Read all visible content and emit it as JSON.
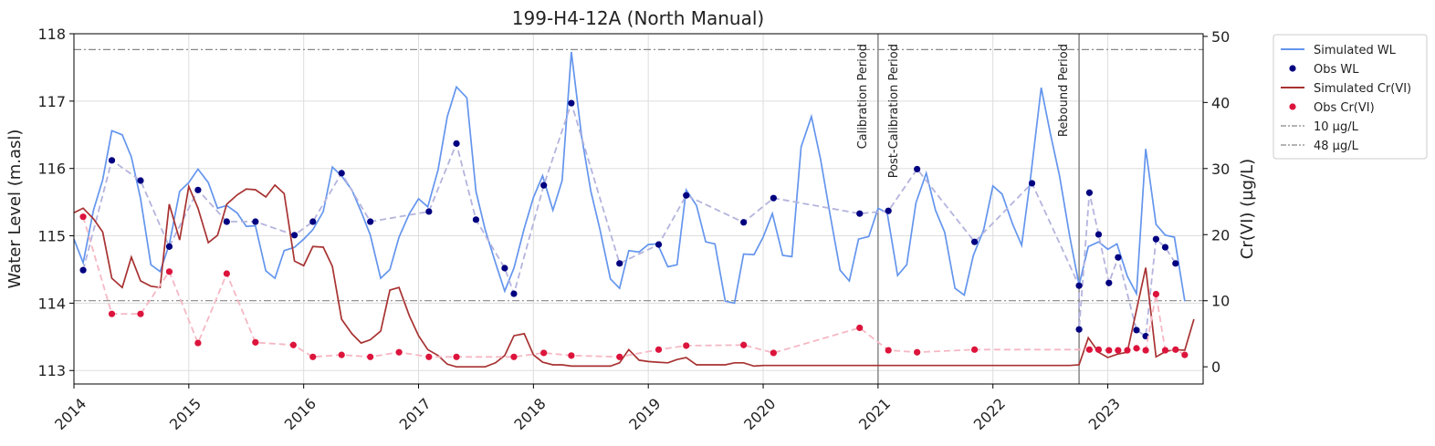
{
  "chart_data": {
    "type": "line",
    "title": "199-H4-12A (North Manual)",
    "ylabel": "Water Level (m.asl)",
    "y2label": "Cr(VI) (µg/L)",
    "xlim": [
      2014,
      2023.83
    ],
    "xticks": [
      2014,
      2015,
      2016,
      2017,
      2018,
      2019,
      2020,
      2021,
      2022,
      2023
    ],
    "ylim": [
      112.8,
      118
    ],
    "yticks": [
      113,
      114,
      115,
      116,
      117,
      118
    ],
    "y2lim": [
      -2.6,
      50.4
    ],
    "y2ticks": [
      0,
      10,
      20,
      30,
      40,
      50
    ],
    "grid": true,
    "legend": "outside-right",
    "x": [
      2014,
      2014.08,
      2014.17,
      2014.25,
      2014.33,
      2014.42,
      2014.5,
      2014.58,
      2014.67,
      2014.75,
      2014.83,
      2014.92,
      2015,
      2015.08,
      2015.17,
      2015.25,
      2015.33,
      2015.42,
      2015.5,
      2015.58,
      2015.67,
      2015.75,
      2015.83,
      2015.92,
      2016,
      2016.08,
      2016.17,
      2016.25,
      2016.33,
      2016.42,
      2016.5,
      2016.58,
      2016.67,
      2016.75,
      2016.83,
      2016.92,
      2017,
      2017.08,
      2017.17,
      2017.25,
      2017.33,
      2017.42,
      2017.5,
      2017.58,
      2017.67,
      2017.75,
      2017.83,
      2017.92,
      2018,
      2018.08,
      2018.17,
      2018.25,
      2018.33,
      2018.42,
      2018.5,
      2018.58,
      2018.67,
      2018.75,
      2018.83,
      2018.92,
      2019,
      2019.08,
      2019.17,
      2019.25,
      2019.33,
      2019.42,
      2019.5,
      2019.58,
      2019.67,
      2019.75,
      2019.83,
      2019.92,
      2020,
      2020.08,
      2020.17,
      2020.25,
      2020.33,
      2020.42,
      2020.5,
      2020.58,
      2020.67,
      2020.75,
      2020.83,
      2020.92,
      2021,
      2021.08,
      2021.17,
      2021.25,
      2021.33,
      2021.42,
      2021.5,
      2021.58,
      2021.67,
      2021.75,
      2021.83,
      2021.92,
      2022,
      2022.08,
      2022.17,
      2022.25,
      2022.33,
      2022.42,
      2022.5,
      2022.58,
      2022.67,
      2022.75,
      2022.83,
      2022.92,
      2023,
      2023.08,
      2023.17,
      2023.25,
      2023.33,
      2023.42,
      2023.5,
      2023.58,
      2023.67,
      2023.75
    ],
    "series": [
      {
        "name": "Simulated WL",
        "type": "line",
        "color": "#6495ed",
        "axis": "y",
        "values": [
          114.95,
          114.6,
          115.38,
          115.83,
          116.56,
          116.5,
          116.17,
          115.55,
          114.57,
          114.47,
          114.87,
          115.66,
          115.79,
          115.99,
          115.79,
          115.41,
          115.45,
          115.34,
          115.14,
          115.15,
          114.48,
          114.37,
          114.78,
          114.83,
          114.95,
          115.09,
          115.36,
          116.02,
          115.89,
          115.68,
          115.36,
          115.01,
          114.37,
          114.5,
          114.98,
          115.33,
          115.55,
          115.43,
          115.98,
          116.77,
          117.21,
          117.05,
          115.66,
          115.09,
          114.6,
          114.18,
          114.52,
          115.11,
          115.57,
          115.89,
          115.38,
          115.82,
          117.73,
          116.47,
          115.66,
          115.09,
          114.36,
          114.22,
          114.78,
          114.76,
          114.87,
          114.88,
          114.54,
          114.57,
          115.68,
          115.45,
          114.91,
          114.88,
          114.03,
          114.0,
          114.73,
          114.72,
          114.98,
          115.33,
          114.71,
          114.69,
          116.32,
          116.77,
          116.13,
          115.34,
          114.49,
          114.33,
          114.95,
          114.99,
          115.41,
          115.34,
          114.41,
          114.57,
          115.49,
          115.93,
          115.38,
          115.05,
          114.22,
          114.12,
          114.71,
          115.09,
          115.74,
          115.62,
          115.18,
          114.86,
          115.89,
          117.2,
          116.52,
          115.89,
          114.98,
          114.27,
          114.84,
          114.91,
          114.8,
          114.88,
          114.4,
          114.14,
          116.29,
          115.17,
          115.01,
          114.98,
          114.03,
          null
        ]
      },
      {
        "name": "Obs WL",
        "type": "scatter",
        "color": "#000080",
        "axis": "y",
        "line_color": "#b4b4de",
        "line_style": "dashed",
        "x": [
          2014.08,
          2014.33,
          2014.58,
          2014.83,
          2015.08,
          2015.33,
          2015.58,
          2015.92,
          2016.08,
          2016.33,
          2016.58,
          2017.09,
          2017.33,
          2017.5,
          2017.75,
          2017.83,
          2018.09,
          2018.33,
          2018.75,
          2019.09,
          2019.33,
          2019.83,
          2020.09,
          2020.84,
          2021.09,
          2021.34,
          2021.84,
          2022.34,
          2022.75,
          2022.75,
          2022.84,
          2022.92,
          2023.01,
          2023.09,
          2023.25,
          2023.33,
          2023.42,
          2023.5,
          2023.59
        ],
        "values": [
          114.49,
          116.12,
          115.82,
          114.84,
          115.68,
          115.21,
          115.21,
          115.01,
          115.21,
          115.93,
          115.21,
          115.36,
          116.37,
          115.24,
          114.52,
          114.14,
          115.75,
          116.97,
          114.59,
          114.87,
          115.6,
          115.2,
          115.56,
          115.33,
          115.37,
          115.99,
          114.91,
          115.78,
          114.26,
          113.61,
          115.64,
          115.02,
          114.3,
          114.68,
          113.6,
          113.51,
          114.95,
          114.83,
          114.59
        ]
      },
      {
        "name": "Simulated Cr(VI)",
        "type": "line",
        "color": "#a83232",
        "axis": "y2",
        "values": [
          23.3,
          24.0,
          22.4,
          20.4,
          13.4,
          12.0,
          16.6,
          13.0,
          12.2,
          12.0,
          24.6,
          19.2,
          27.3,
          24.0,
          18.8,
          19.9,
          24.6,
          26.0,
          26.9,
          26.8,
          25.7,
          27.5,
          26.2,
          16.0,
          15.3,
          18.2,
          18.1,
          15.2,
          7.2,
          5.0,
          3.6,
          4.1,
          5.4,
          11.6,
          12.0,
          7.7,
          4.7,
          2.6,
          1.7,
          0.4,
          0,
          0,
          0,
          0,
          0.6,
          1.7,
          4.7,
          5.0,
          1.8,
          0.7,
          0.3,
          0.3,
          0.1,
          0.1,
          0.1,
          0.1,
          0.1,
          0.6,
          2.6,
          1.0,
          0.8,
          0.7,
          0.6,
          1.1,
          1.4,
          0.3,
          0.3,
          0.3,
          0.3,
          0.6,
          0.6,
          0.1,
          0.2,
          0.2,
          0.2,
          0.2,
          0.2,
          0.2,
          0.2,
          0.2,
          0.2,
          0.2,
          0.2,
          0.2,
          0.2,
          0.2,
          0.2,
          0.2,
          0.2,
          0.2,
          0.2,
          0.2,
          0.2,
          0.2,
          0.2,
          0.2,
          0.2,
          0.2,
          0.2,
          0.2,
          0.2,
          0.2,
          0.2,
          0.2,
          0.2,
          0.3,
          4.4,
          2.2,
          1.4,
          1.9,
          2.2,
          8.6,
          15.0,
          1.5,
          2.3,
          2.6,
          2.5,
          7.2
        ]
      },
      {
        "name": "Obs Cr(VI)",
        "type": "scatter",
        "color": "#dc143c",
        "axis": "y2",
        "line_color": "#f5b8c4",
        "line_style": "dashed",
        "x": [
          2014.08,
          2014.33,
          2014.58,
          2014.83,
          2015.08,
          2015.33,
          2015.58,
          2015.91,
          2016.08,
          2016.33,
          2016.58,
          2016.83,
          2017.09,
          2017.33,
          2017.83,
          2018.09,
          2018.33,
          2018.75,
          2019.09,
          2019.33,
          2019.83,
          2020.09,
          2020.84,
          2021.09,
          2021.34,
          2021.84,
          2022.84,
          2022.92,
          2023.01,
          2023.09,
          2023.17,
          2023.25,
          2023.33,
          2023.42,
          2023.5,
          2023.59,
          2023.67
        ],
        "values": [
          22.7,
          8.0,
          8.0,
          14.4,
          3.6,
          14.1,
          3.7,
          3.3,
          1.5,
          1.8,
          1.5,
          2.2,
          1.5,
          1.5,
          1.5,
          2.1,
          1.7,
          1.5,
          2.6,
          3.2,
          3.3,
          2.1,
          5.9,
          2.5,
          2.2,
          2.6,
          2.6,
          2.6,
          2.5,
          2.5,
          2.5,
          2.8,
          2.5,
          11.0,
          2.5,
          2.6,
          1.8
        ]
      }
    ],
    "hlines": [
      {
        "name": "10 µg/L",
        "value": 10,
        "axis": "y2",
        "color": "#888888"
      },
      {
        "name": "48 µg/L",
        "value": 48,
        "axis": "y2",
        "color": "#888888"
      }
    ],
    "vlines": [
      {
        "x": 2021,
        "color": "#888888"
      },
      {
        "x": 2022.75,
        "color": "#888888"
      }
    ],
    "annotations": [
      {
        "text": "Calibration Period",
        "x": 2021,
        "side": "left"
      },
      {
        "text": "Post-Calibration Period",
        "x": 2021,
        "side": "right"
      },
      {
        "text": "Rebound Period",
        "x": 2022.75,
        "side": "left"
      }
    ]
  }
}
